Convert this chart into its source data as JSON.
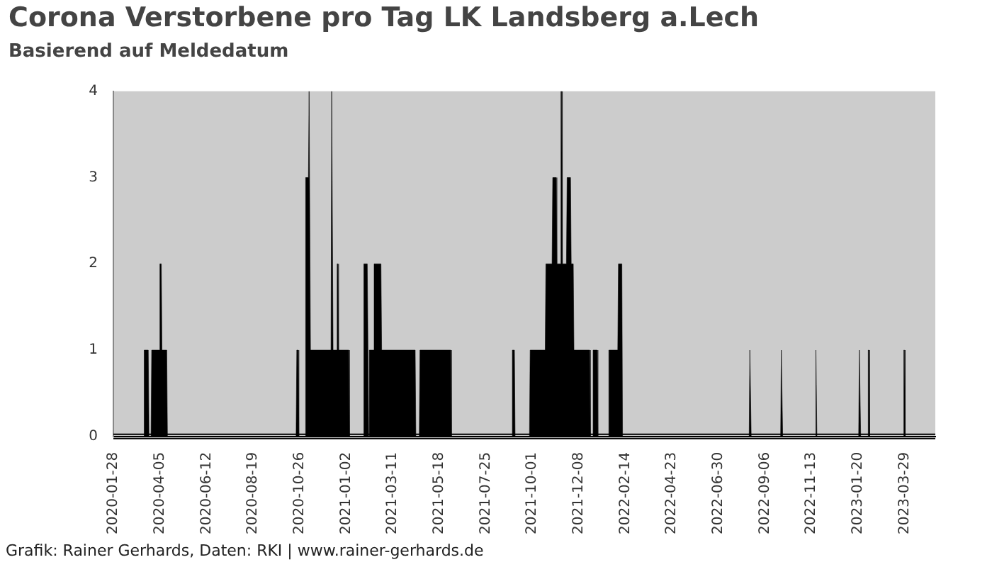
{
  "chart_data": {
    "type": "area",
    "title": "Corona Verstorbene pro Tag LK Landsberg a.Lech",
    "subtitle": "Basierend auf Meldedatum",
    "annotations": [
      "Grafik: Rainer Gerhards, Daten: RKI | www.rainer-gerhards.de"
    ],
    "series": [
      {
        "color": "#000000",
        "x": [
          "2020-01-28",
          "2020-03-12",
          "2020-03-13",
          "2020-03-19",
          "2020-03-20",
          "2020-03-23",
          "2020-03-24",
          "2020-04-04",
          "2020-04-05",
          "2020-04-07",
          "2020-04-08",
          "2020-04-15",
          "2020-04-16",
          "2020-10-21",
          "2020-10-22",
          "2020-10-24",
          "2020-10-25",
          "2020-11-03",
          "2020-11-04",
          "2020-11-08",
          "2020-11-09",
          "2020-11-10",
          "2020-11-11",
          "2020-12-11",
          "2020-12-12",
          "2020-12-13",
          "2020-12-14",
          "2020-12-19",
          "2020-12-20",
          "2020-12-21",
          "2020-12-22",
          "2021-01-06",
          "2021-01-07",
          "2021-01-27",
          "2021-01-28",
          "2021-02-02",
          "2021-02-04",
          "2021-02-05",
          "2021-02-11",
          "2021-02-12",
          "2021-02-22",
          "2021-02-23",
          "2021-04-13",
          "2021-04-14",
          "2021-04-19",
          "2021-04-20",
          "2021-06-04",
          "2021-06-05",
          "2021-09-01",
          "2021-09-02",
          "2021-09-05",
          "2021-09-06",
          "2021-09-27",
          "2021-09-28",
          "2021-10-20",
          "2021-10-21",
          "2021-10-30",
          "2021-10-31",
          "2021-11-05",
          "2021-11-06",
          "2021-11-11",
          "2021-11-12",
          "2021-11-13",
          "2021-11-14",
          "2021-11-20",
          "2021-11-21",
          "2021-11-26",
          "2021-11-27",
          "2021-11-30",
          "2021-12-01",
          "2021-12-24",
          "2021-12-25",
          "2021-12-28",
          "2021-12-29",
          "2022-01-04",
          "2022-01-05",
          "2022-01-20",
          "2022-01-21",
          "2022-02-03",
          "2022-02-04",
          "2022-02-09",
          "2022-02-10",
          "2022-08-14",
          "2022-08-15",
          "2022-08-16",
          "2022-08-17",
          "2022-09-29",
          "2022-09-30",
          "2022-10-01",
          "2022-10-02",
          "2022-11-18",
          "2022-11-19",
          "2022-11-20",
          "2022-11-21",
          "2023-01-21",
          "2023-01-22",
          "2023-01-23",
          "2023-01-24",
          "2023-02-03",
          "2023-02-04",
          "2023-02-05",
          "2023-02-06",
          "2023-03-27",
          "2023-03-28",
          "2023-03-29",
          "2023-03-30",
          "2023-05-13"
        ],
        "values": [
          0,
          0,
          1,
          1,
          0,
          0,
          1,
          1,
          2,
          2,
          1,
          1,
          0,
          0,
          1,
          1,
          0,
          0,
          3,
          3,
          4,
          4,
          1,
          1,
          4,
          4,
          1,
          1,
          2,
          2,
          1,
          1,
          0,
          0,
          2,
          2,
          0,
          1,
          1,
          2,
          2,
          1,
          1,
          0,
          0,
          1,
          1,
          0,
          0,
          1,
          1,
          0,
          0,
          1,
          1,
          2,
          2,
          3,
          3,
          2,
          2,
          4,
          4,
          2,
          2,
          3,
          3,
          2,
          2,
          1,
          1,
          0,
          0,
          1,
          1,
          0,
          0,
          1,
          1,
          2,
          2,
          0,
          0,
          1,
          1,
          0,
          0,
          1,
          1,
          0,
          0,
          1,
          1,
          0,
          0,
          1,
          1,
          0,
          0,
          1,
          1,
          0,
          0,
          1,
          1,
          0,
          0
        ]
      }
    ],
    "xlim": [
      "2020-01-28",
      "2023-05-13"
    ],
    "xticks": [
      "2020-01-28",
      "2020-04-05",
      "2020-06-12",
      "2020-08-19",
      "2020-10-26",
      "2021-01-02",
      "2021-03-11",
      "2021-05-18",
      "2021-07-25",
      "2021-10-01",
      "2021-12-08",
      "2022-02-14",
      "2022-04-23",
      "2022-06-30",
      "2022-09-06",
      "2022-11-13",
      "2023-01-20",
      "2023-03-29"
    ],
    "ylim": [
      0,
      4
    ],
    "yticks": [
      0,
      1,
      2,
      3,
      4
    ],
    "grid": false,
    "legend": false
  }
}
